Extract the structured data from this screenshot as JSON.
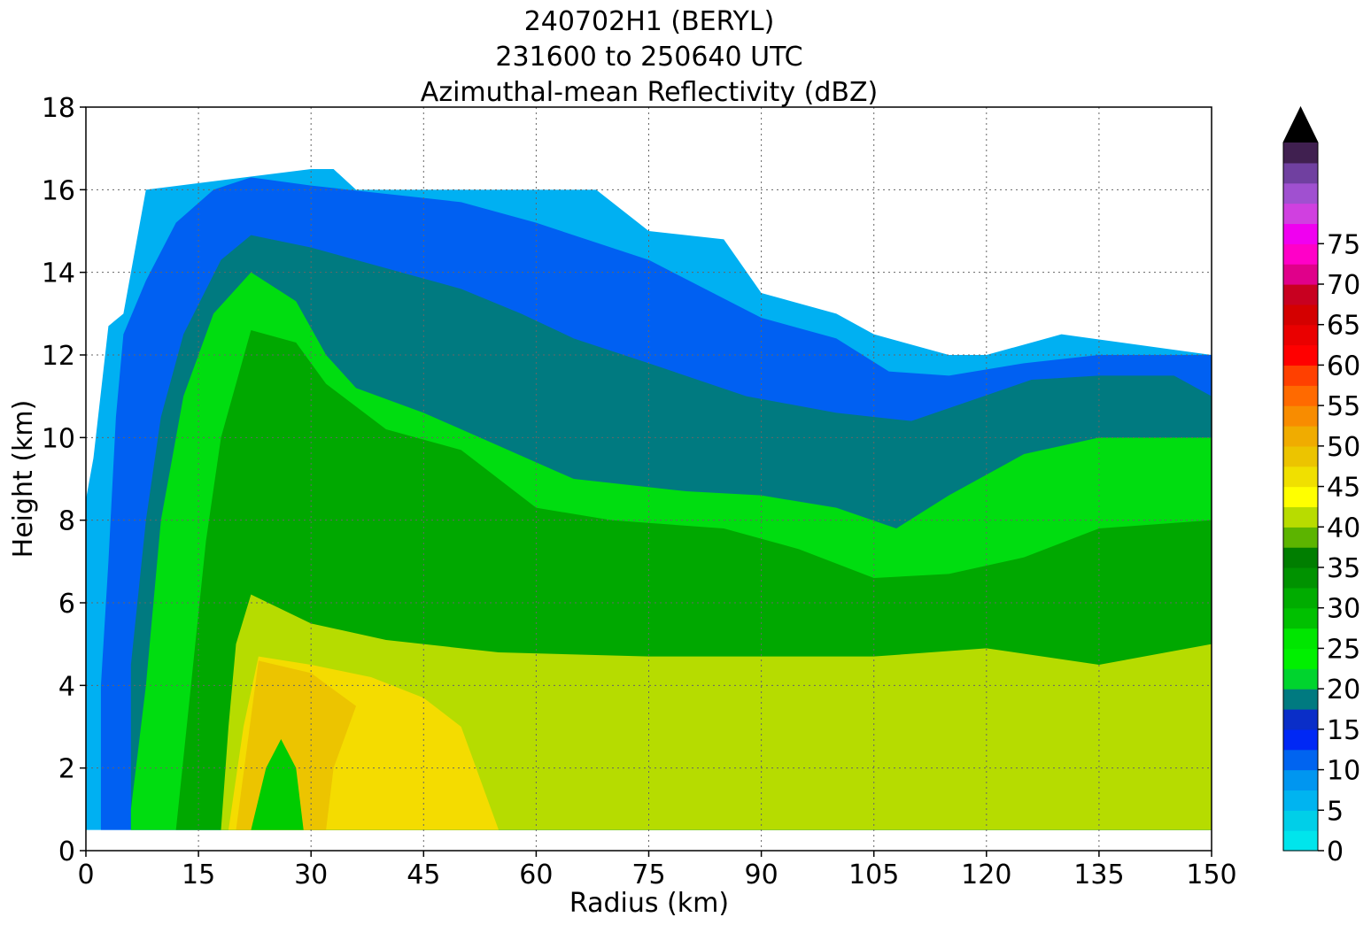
{
  "chart_data": {
    "type": "heatmap",
    "subtype": "filled-contour",
    "title": [
      "240702H1 (BERYL)",
      "231600 to 250640 UTC",
      "Azimuthal-mean Reflectivity (dBZ)"
    ],
    "xlabel": "Radius (km)",
    "ylabel": "Height (km)",
    "xlim": [
      0,
      150
    ],
    "ylim": [
      0,
      18
    ],
    "xticks": [
      0,
      15,
      30,
      45,
      60,
      75,
      90,
      105,
      120,
      135,
      150
    ],
    "yticks": [
      0,
      2,
      4,
      6,
      8,
      10,
      12,
      14,
      16,
      18
    ],
    "grid": true,
    "colorbar": {
      "ticks": [
        0,
        5,
        10,
        15,
        20,
        25,
        30,
        35,
        40,
        45,
        50,
        55,
        60,
        65,
        70,
        75
      ],
      "levels_step": 2.5,
      "extend": "max",
      "colors": [
        "#00e5ec",
        "#00cfe8",
        "#00b4f0",
        "#0096f0",
        "#0064f0",
        "#0028f5",
        "#0a2ec8",
        "#007a80",
        "#00d42e",
        "#00f000",
        "#00e600",
        "#00c000",
        "#00ac00",
        "#009200",
        "#007e00",
        "#5cb400",
        "#b8dc00",
        "#ffff00",
        "#f0e000",
        "#ecc400",
        "#f0ac00",
        "#f88c00",
        "#ff6a00",
        "#ff4000",
        "#ff0000",
        "#ea0000",
        "#d40000",
        "#c80020",
        "#e0008a",
        "#ff00c8",
        "#f000f0",
        "#d040e0",
        "#a050d0",
        "#7040a0",
        "#402050",
        "#000000"
      ]
    },
    "level_boundaries": [
      {
        "level": 0,
        "min_dbz": 0,
        "upper_envelope": [
          [
            0,
            8.5
          ],
          [
            1,
            9.5
          ],
          [
            3,
            12.7
          ],
          [
            5,
            13
          ],
          [
            7,
            15
          ],
          [
            8,
            16
          ],
          [
            30,
            16.5
          ],
          [
            33,
            16.5
          ],
          [
            36,
            16
          ],
          [
            55,
            16
          ],
          [
            68,
            16
          ],
          [
            75,
            15
          ],
          [
            85,
            14.8
          ],
          [
            90,
            13.5
          ],
          [
            100,
            13
          ],
          [
            105,
            12.5
          ],
          [
            115,
            12
          ],
          [
            120,
            12
          ],
          [
            130,
            12.5
          ],
          [
            150,
            12
          ]
        ]
      },
      {
        "level": 1,
        "min_dbz": 5,
        "contour": [
          [
            2,
            4
          ],
          [
            3,
            7
          ],
          [
            4,
            10.5
          ],
          [
            5,
            12.5
          ],
          [
            8,
            13.8
          ],
          [
            12,
            15.2
          ],
          [
            17,
            16
          ],
          [
            22,
            16.3
          ],
          [
            30,
            16.1
          ],
          [
            40,
            15.9
          ],
          [
            50,
            15.7
          ],
          [
            60,
            15.2
          ],
          [
            75,
            14.3
          ],
          [
            90,
            12.9
          ],
          [
            100,
            12.4
          ],
          [
            107,
            11.6
          ],
          [
            115,
            11.5
          ],
          [
            125,
            11.8
          ],
          [
            135,
            12
          ],
          [
            150,
            12
          ]
        ]
      },
      {
        "level": 2,
        "min_dbz": 10,
        "contour": [
          [
            6,
            4.5
          ],
          [
            8,
            8
          ],
          [
            10,
            10.5
          ],
          [
            13,
            12.5
          ],
          [
            18,
            14.3
          ],
          [
            22,
            14.9
          ],
          [
            30,
            14.6
          ],
          [
            40,
            14.1
          ],
          [
            50,
            13.6
          ],
          [
            58,
            13
          ],
          [
            65,
            12.4
          ],
          [
            75,
            11.8
          ],
          [
            88,
            11
          ],
          [
            100,
            10.6
          ],
          [
            110,
            10.4
          ],
          [
            118,
            10.9
          ],
          [
            126,
            11.4
          ],
          [
            135,
            11.5
          ],
          [
            145,
            11.5
          ],
          [
            150,
            11
          ]
        ]
      },
      {
        "level": 3,
        "min_dbz": 15,
        "contour": [
          [
            6,
            1
          ],
          [
            8,
            4
          ],
          [
            10,
            8
          ],
          [
            13,
            11
          ],
          [
            17,
            13
          ],
          [
            22,
            14
          ],
          [
            28,
            13.3
          ],
          [
            32,
            12
          ],
          [
            36,
            11.2
          ],
          [
            45,
            10.6
          ],
          [
            55,
            9.8
          ],
          [
            65,
            9
          ],
          [
            80,
            8.7
          ],
          [
            90,
            8.6
          ],
          [
            100,
            8.3
          ],
          [
            108,
            7.8
          ],
          [
            115,
            8.6
          ],
          [
            125,
            9.6
          ],
          [
            135,
            10
          ],
          [
            150,
            10
          ]
        ]
      },
      {
        "level": 4,
        "min_dbz": 20,
        "contour": [
          [
            12,
            0.5
          ],
          [
            14,
            4
          ],
          [
            16,
            7.5
          ],
          [
            18,
            10
          ],
          [
            22,
            12.6
          ],
          [
            28,
            12.3
          ],
          [
            32,
            11.3
          ],
          [
            40,
            10.2
          ],
          [
            50,
            9.7
          ],
          [
            60,
            8.3
          ],
          [
            70,
            8
          ],
          [
            85,
            7.8
          ],
          [
            95,
            7.3
          ],
          [
            105,
            6.6
          ],
          [
            115,
            6.7
          ],
          [
            125,
            7.1
          ],
          [
            135,
            7.8
          ],
          [
            150,
            8
          ]
        ]
      },
      {
        "level": 5,
        "min_dbz": 25,
        "contour": [
          [
            18,
            0.5
          ],
          [
            19,
            3
          ],
          [
            20,
            5
          ],
          [
            22,
            6.2
          ],
          [
            30,
            5.5
          ],
          [
            40,
            5.1
          ],
          [
            55,
            4.8
          ],
          [
            75,
            4.7
          ],
          [
            90,
            4.7
          ],
          [
            105,
            4.7
          ],
          [
            120,
            4.9
          ],
          [
            135,
            4.5
          ],
          [
            150,
            5
          ]
        ]
      },
      {
        "level": 6,
        "min_dbz": 30,
        "contour": [
          [
            19,
            0.5
          ],
          [
            21,
            3
          ],
          [
            23,
            4.7
          ],
          [
            30,
            4.5
          ],
          [
            38,
            4.2
          ],
          [
            45,
            3.7
          ],
          [
            50,
            3
          ],
          [
            52,
            2
          ],
          [
            55,
            0.5
          ]
        ]
      },
      {
        "level": 7,
        "min_dbz": 35,
        "contour": [
          [
            20,
            0.5
          ],
          [
            23,
            4.6
          ],
          [
            30,
            4.3
          ],
          [
            36,
            3.5
          ],
          [
            33,
            2
          ],
          [
            32,
            0.5
          ]
        ]
      },
      {
        "level": 8,
        "min_dbz": 40,
        "contour": [
          [
            22,
            0.5
          ],
          [
            24,
            2
          ],
          [
            26,
            2.7
          ],
          [
            28,
            2
          ],
          [
            29,
            0.5
          ]
        ]
      }
    ]
  }
}
